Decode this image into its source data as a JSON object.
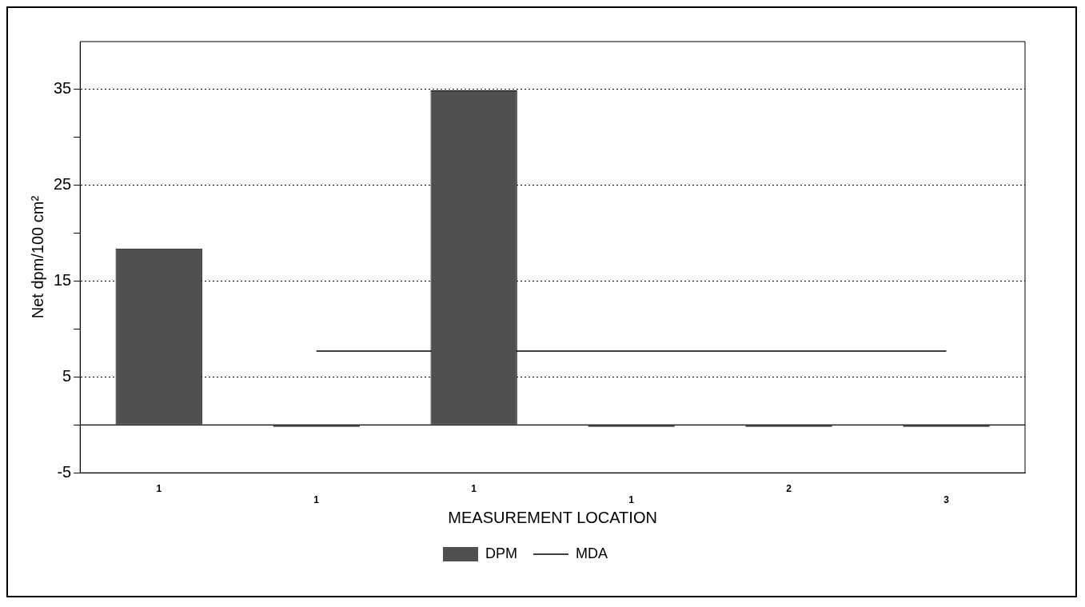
{
  "chart_data": {
    "type": "bar",
    "xlabel": "MEASUREMENT LOCATION",
    "ylabel": "Net dpm/100 cm²",
    "categories": [
      "1",
      "1",
      "1",
      "1",
      "2",
      "3"
    ],
    "series": [
      {
        "name": "DPM",
        "color": "#505050",
        "values": [
          18.4,
          -0.2,
          34.9,
          -0.2,
          -0.2,
          -0.2
        ]
      },
      {
        "name": "MDA",
        "type": "line",
        "color": "#000000",
        "values": [
          null,
          7.7,
          null,
          7.7,
          7.7,
          7.7
        ]
      }
    ],
    "ylim": [
      -5,
      40
    ],
    "yticks": [
      -5,
      {
        "value": 0,
        "label": null
      },
      5,
      {
        "value": 10,
        "label": null
      },
      15,
      {
        "value": 20,
        "label": null
      },
      25,
      {
        "value": 30,
        "label": null
      },
      35
    ],
    "ref_lines": [
      {
        "axis": "y",
        "value": 0,
        "color": "#000000"
      }
    ],
    "grid": "y",
    "legend": "bottom",
    "marker": "none",
    "line_style": "solid"
  }
}
